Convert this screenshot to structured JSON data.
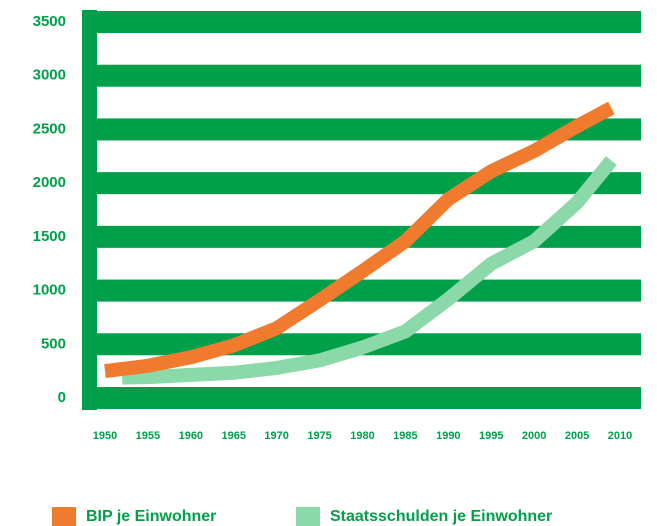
{
  "chart_data": {
    "type": "line",
    "xlim": [
      1950,
      2010
    ],
    "xticks": [
      1950,
      1955,
      1960,
      1965,
      1970,
      1975,
      1980,
      1985,
      1990,
      1995,
      2000,
      2005,
      2010
    ],
    "ylim": [
      0,
      3500
    ],
    "yticks": [
      0,
      500,
      1000,
      1500,
      2000,
      2500,
      3000,
      3500
    ],
    "grid": true,
    "grid_color": "#00a04a",
    "legend": "bottom",
    "series": [
      {
        "name": "BIP je Einwohner",
        "color": "#f07a2e",
        "x": [
          1950,
          1955,
          1960,
          1965,
          1970,
          1975,
          1980,
          1985,
          1990,
          1995,
          2000,
          2005,
          2009
        ],
        "values": [
          250,
          300,
          380,
          490,
          650,
          910,
          1180,
          1460,
          1850,
          2110,
          2300,
          2530,
          2700
        ]
      },
      {
        "name": "Staatsschulden je Einwohner",
        "color": "#8bd8a9",
        "x": [
          1952,
          1955,
          1960,
          1965,
          1970,
          1975,
          1980,
          1985,
          1990,
          1995,
          2000,
          2005,
          2009
        ],
        "values": [
          190,
          195,
          215,
          235,
          280,
          350,
          470,
          620,
          920,
          1250,
          1460,
          1820,
          2210
        ]
      }
    ]
  }
}
